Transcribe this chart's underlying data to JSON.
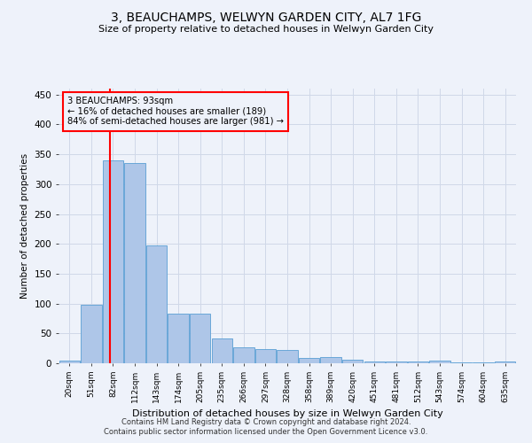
{
  "title": "3, BEAUCHAMPS, WELWYN GARDEN CITY, AL7 1FG",
  "subtitle": "Size of property relative to detached houses in Welwyn Garden City",
  "xlabel": "Distribution of detached houses by size in Welwyn Garden City",
  "ylabel": "Number of detached properties",
  "footnote1": "Contains HM Land Registry data © Crown copyright and database right 2024.",
  "footnote2": "Contains public sector information licensed under the Open Government Licence v3.0.",
  "annotation_line1": "3 BEAUCHAMPS: 93sqm",
  "annotation_line2": "← 16% of detached houses are smaller (189)",
  "annotation_line3": "84% of semi-detached houses are larger (981) →",
  "bar_labels": [
    "20sqm",
    "51sqm",
    "82sqm",
    "112sqm",
    "143sqm",
    "174sqm",
    "205sqm",
    "235sqm",
    "266sqm",
    "297sqm",
    "328sqm",
    "358sqm",
    "389sqm",
    "420sqm",
    "451sqm",
    "481sqm",
    "512sqm",
    "543sqm",
    "574sqm",
    "604sqm",
    "635sqm"
  ],
  "bar_values": [
    5,
    98,
    340,
    336,
    197,
    83,
    83,
    42,
    26,
    24,
    22,
    9,
    10,
    6,
    3,
    3,
    3,
    5,
    1,
    1,
    3
  ],
  "bar_color": "#aec6e8",
  "bar_edge_color": "#5a9fd4",
  "grid_color": "#d0d8e8",
  "property_sqm": 93,
  "ylim": [
    0,
    460
  ],
  "yticks": [
    0,
    50,
    100,
    150,
    200,
    250,
    300,
    350,
    400,
    450
  ],
  "background_color": "#eef2fa"
}
